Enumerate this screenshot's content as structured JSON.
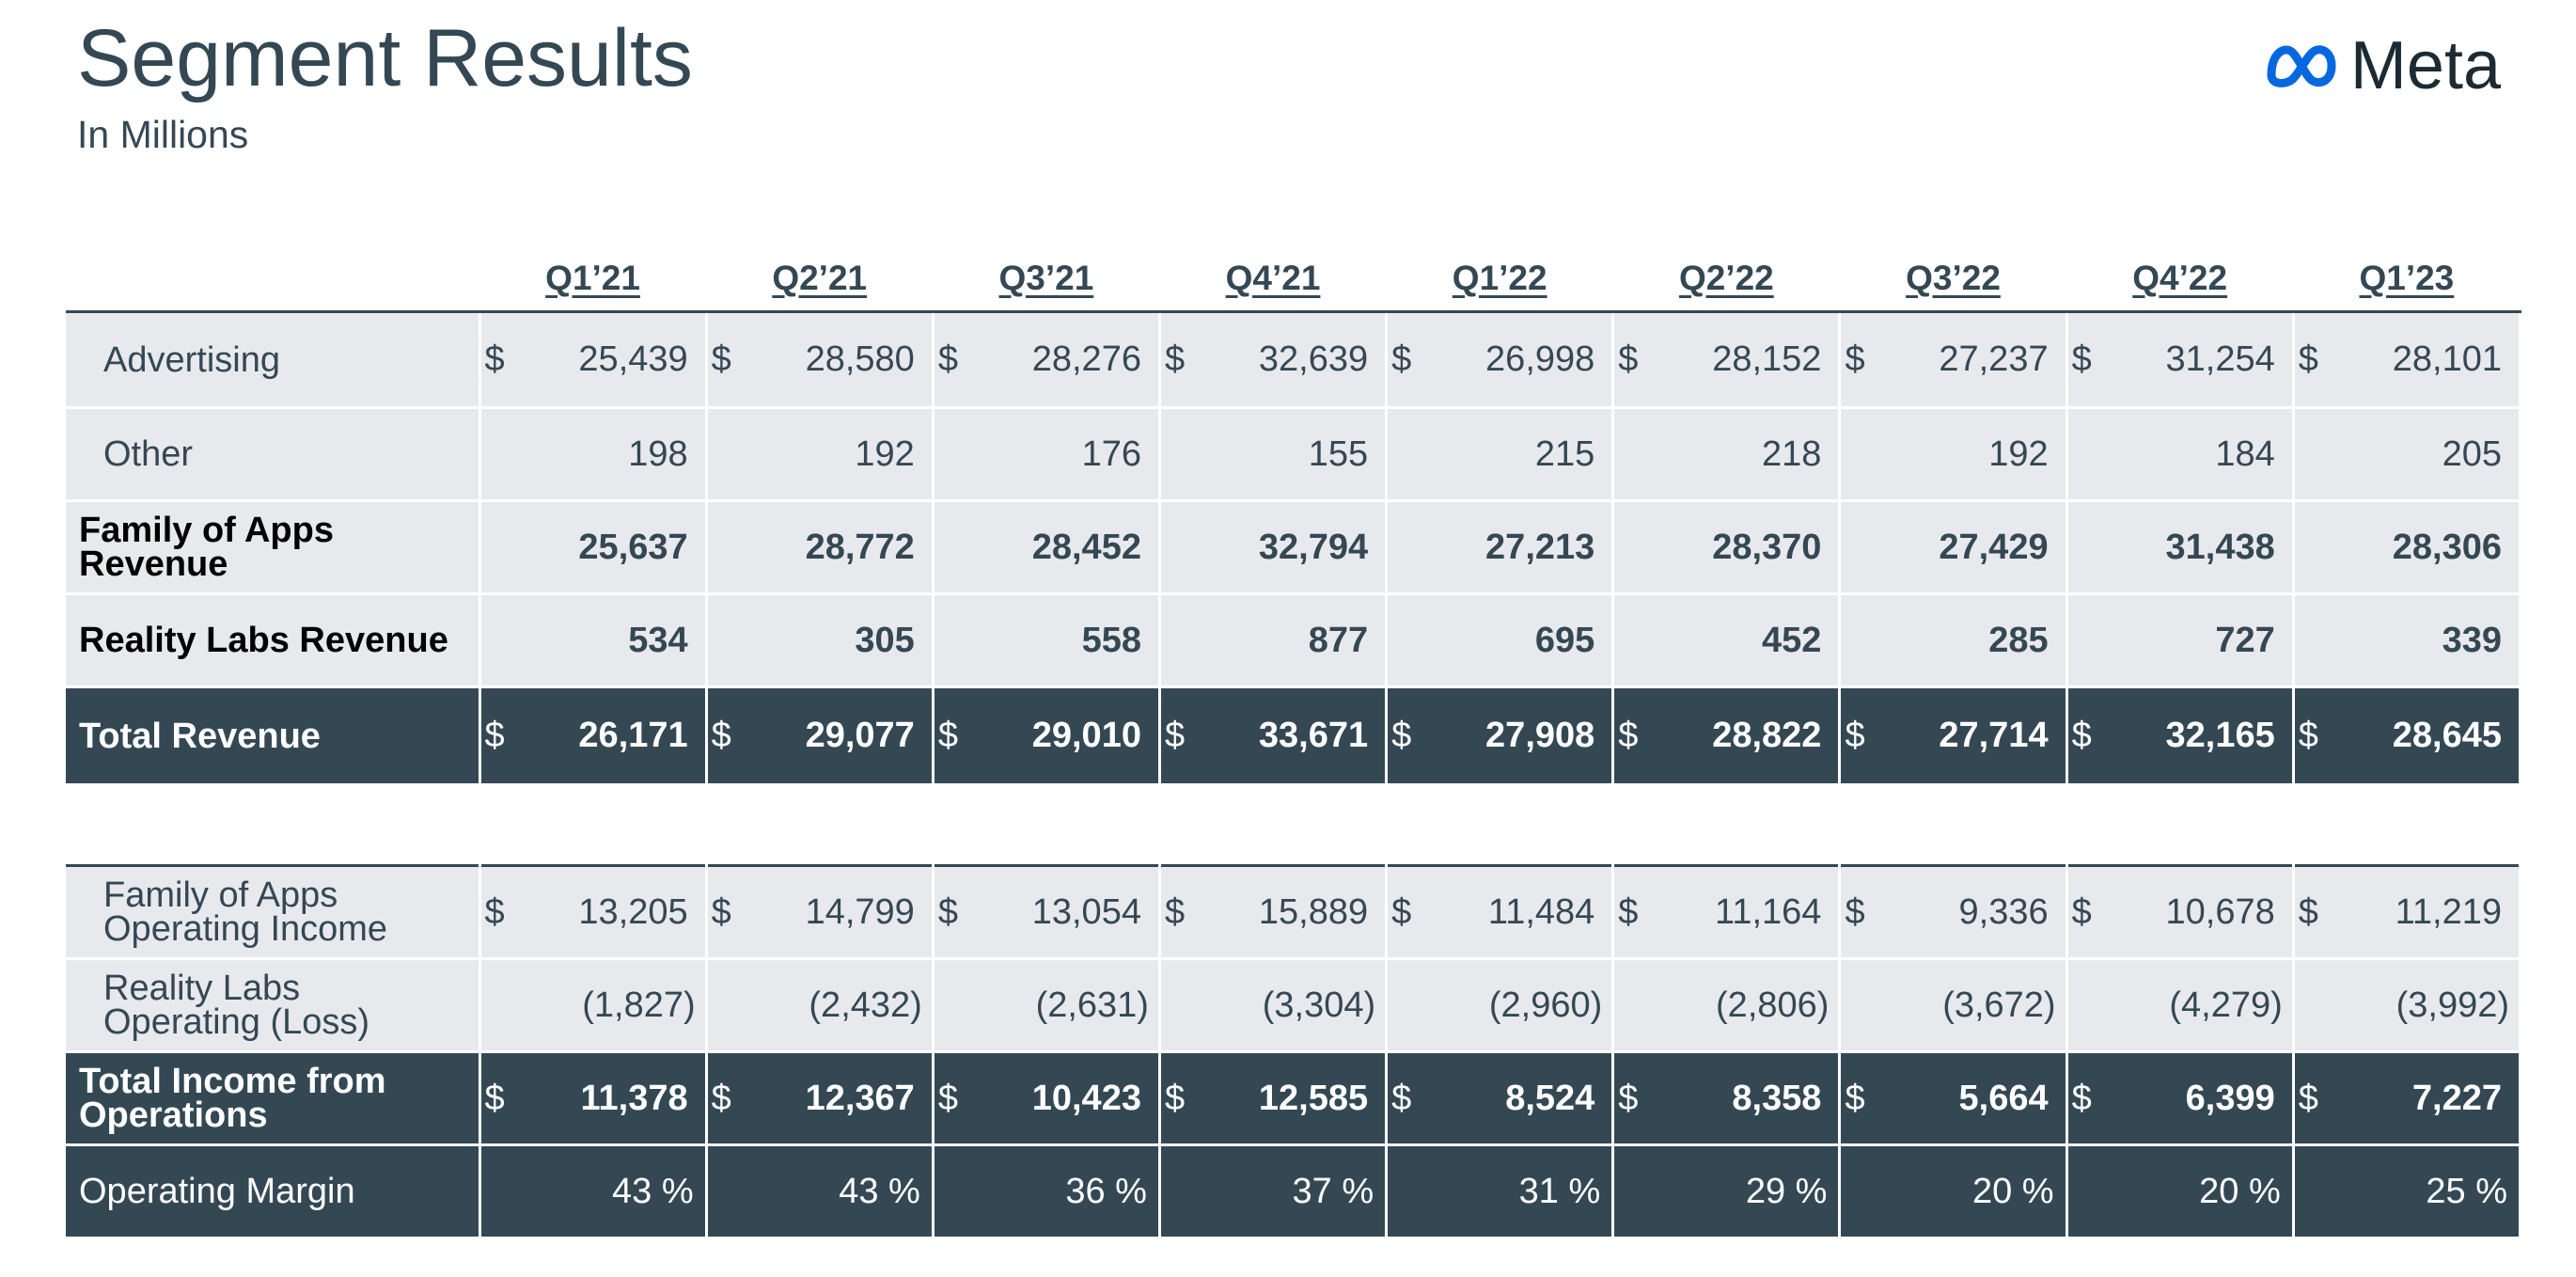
{
  "header": {
    "title": "Segment Results",
    "subtitle": "In Millions",
    "logo_text": "Meta",
    "logo_icon": "meta-infinity-logo"
  },
  "colors": {
    "dark_row": "#344854",
    "light_row": "#e8e9ed",
    "logo_blue": "#0668e1"
  },
  "revenue_table": {
    "quarters": [
      "Q1’21",
      "Q2’21",
      "Q3’21",
      "Q4’21",
      "Q1’22",
      "Q2’22",
      "Q3’22",
      "Q4’22",
      "Q1’23"
    ],
    "rows": [
      {
        "label": "Advertising",
        "dollar": "$",
        "values": [
          "25,439",
          "28,580",
          "28,276",
          "32,639",
          "26,998",
          "28,152",
          "27,237",
          "31,254",
          "28,101"
        ]
      },
      {
        "label": "Other",
        "dollar": "",
        "values": [
          "198",
          "192",
          "176",
          "155",
          "215",
          "218",
          "192",
          "184",
          "205"
        ]
      },
      {
        "label": "Family of Apps Revenue",
        "dollar": "",
        "values": [
          "25,637",
          "28,772",
          "28,452",
          "32,794",
          "27,213",
          "28,370",
          "27,429",
          "31,438",
          "28,306"
        ]
      },
      {
        "label": "Reality Labs Revenue",
        "dollar": "",
        "values": [
          "534",
          "305",
          "558",
          "877",
          "695",
          "452",
          "285",
          "727",
          "339"
        ]
      },
      {
        "label": "Total Revenue",
        "dollar": "$",
        "values": [
          "26,171",
          "29,077",
          "29,010",
          "33,671",
          "27,908",
          "28,822",
          "27,714",
          "32,165",
          "28,645"
        ]
      }
    ]
  },
  "income_table": {
    "rows": [
      {
        "label": "Family of Apps Operating Income",
        "dollar": "$",
        "values": [
          "13,205",
          "14,799",
          "13,054",
          "15,889",
          "11,484",
          "11,164",
          "9,336",
          "10,678",
          "11,219"
        ]
      },
      {
        "label": "Reality Labs Operating (Loss)",
        "dollar": "",
        "values": [
          "(1,827)",
          "(2,432)",
          "(2,631)",
          "(3,304)",
          "(2,960)",
          "(2,806)",
          "(3,672)",
          "(4,279)",
          "(3,992)"
        ]
      },
      {
        "label": "Total Income from Operations",
        "dollar": "$",
        "values": [
          "11,378",
          "12,367",
          "10,423",
          "12,585",
          "8,524",
          "8,358",
          "5,664",
          "6,399",
          "7,227"
        ]
      },
      {
        "label": "Operating Margin",
        "dollar": "",
        "values": [
          "43 %",
          "43 %",
          "36 %",
          "37 %",
          "31 %",
          "29 %",
          "20 %",
          "20 %",
          "25 %"
        ]
      }
    ]
  }
}
